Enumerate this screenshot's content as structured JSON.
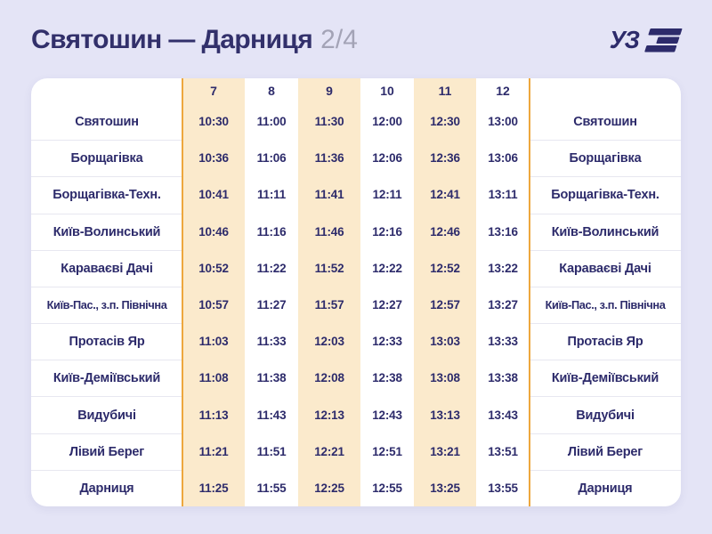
{
  "header": {
    "title": "Святошин — Дарниця",
    "page_indicator": "2/4",
    "logo_text": "УЗ"
  },
  "chart_data": {
    "type": "table",
    "title": "Святошин — Дарниця",
    "page": "2/4",
    "columns": [
      "7",
      "8",
      "9",
      "10",
      "11",
      "12"
    ],
    "highlighted_columns": [
      "7",
      "9",
      "11"
    ],
    "station_column_repeated_on_both_sides": true,
    "rows": [
      {
        "station": "Святошин",
        "times": [
          "10:30",
          "11:00",
          "11:30",
          "12:00",
          "12:30",
          "13:00"
        ]
      },
      {
        "station": "Борщагівка",
        "times": [
          "10:36",
          "11:06",
          "11:36",
          "12:06",
          "12:36",
          "13:06"
        ]
      },
      {
        "station": "Борщагівка-Техн.",
        "times": [
          "10:41",
          "11:11",
          "11:41",
          "12:11",
          "12:41",
          "13:11"
        ]
      },
      {
        "station": "Київ-Волинський",
        "times": [
          "10:46",
          "11:16",
          "11:46",
          "12:16",
          "12:46",
          "13:16"
        ]
      },
      {
        "station": "Караваєві Дачі",
        "times": [
          "10:52",
          "11:22",
          "11:52",
          "12:22",
          "12:52",
          "13:22"
        ]
      },
      {
        "station": "Київ-Пас., з.п. Північна",
        "times": [
          "10:57",
          "11:27",
          "11:57",
          "12:27",
          "12:57",
          "13:27"
        ]
      },
      {
        "station": "Протасів Яр",
        "times": [
          "11:03",
          "11:33",
          "12:03",
          "12:33",
          "13:03",
          "13:33"
        ]
      },
      {
        "station": "Київ-Деміївський",
        "times": [
          "11:08",
          "11:38",
          "12:08",
          "12:38",
          "13:08",
          "13:38"
        ]
      },
      {
        "station": "Видубичі",
        "times": [
          "11:13",
          "11:43",
          "12:13",
          "12:43",
          "13:13",
          "13:43"
        ]
      },
      {
        "station": "Лівий Берег",
        "times": [
          "11:21",
          "11:51",
          "12:21",
          "12:51",
          "13:21",
          "13:51"
        ]
      },
      {
        "station": "Дарниця",
        "times": [
          "11:25",
          "11:55",
          "12:25",
          "12:55",
          "13:25",
          "13:55"
        ]
      }
    ]
  },
  "colors": {
    "page_background": "#e4e4f6",
    "navy_text": "#2d2b6b",
    "title_navy": "#32306b",
    "highlight_cream": "#fbeacc",
    "orange_divider": "#eda73e",
    "page_indicator_gray": "#a3a3b6",
    "row_separator": "#e7e7f0",
    "table_background": "#ffffff"
  }
}
